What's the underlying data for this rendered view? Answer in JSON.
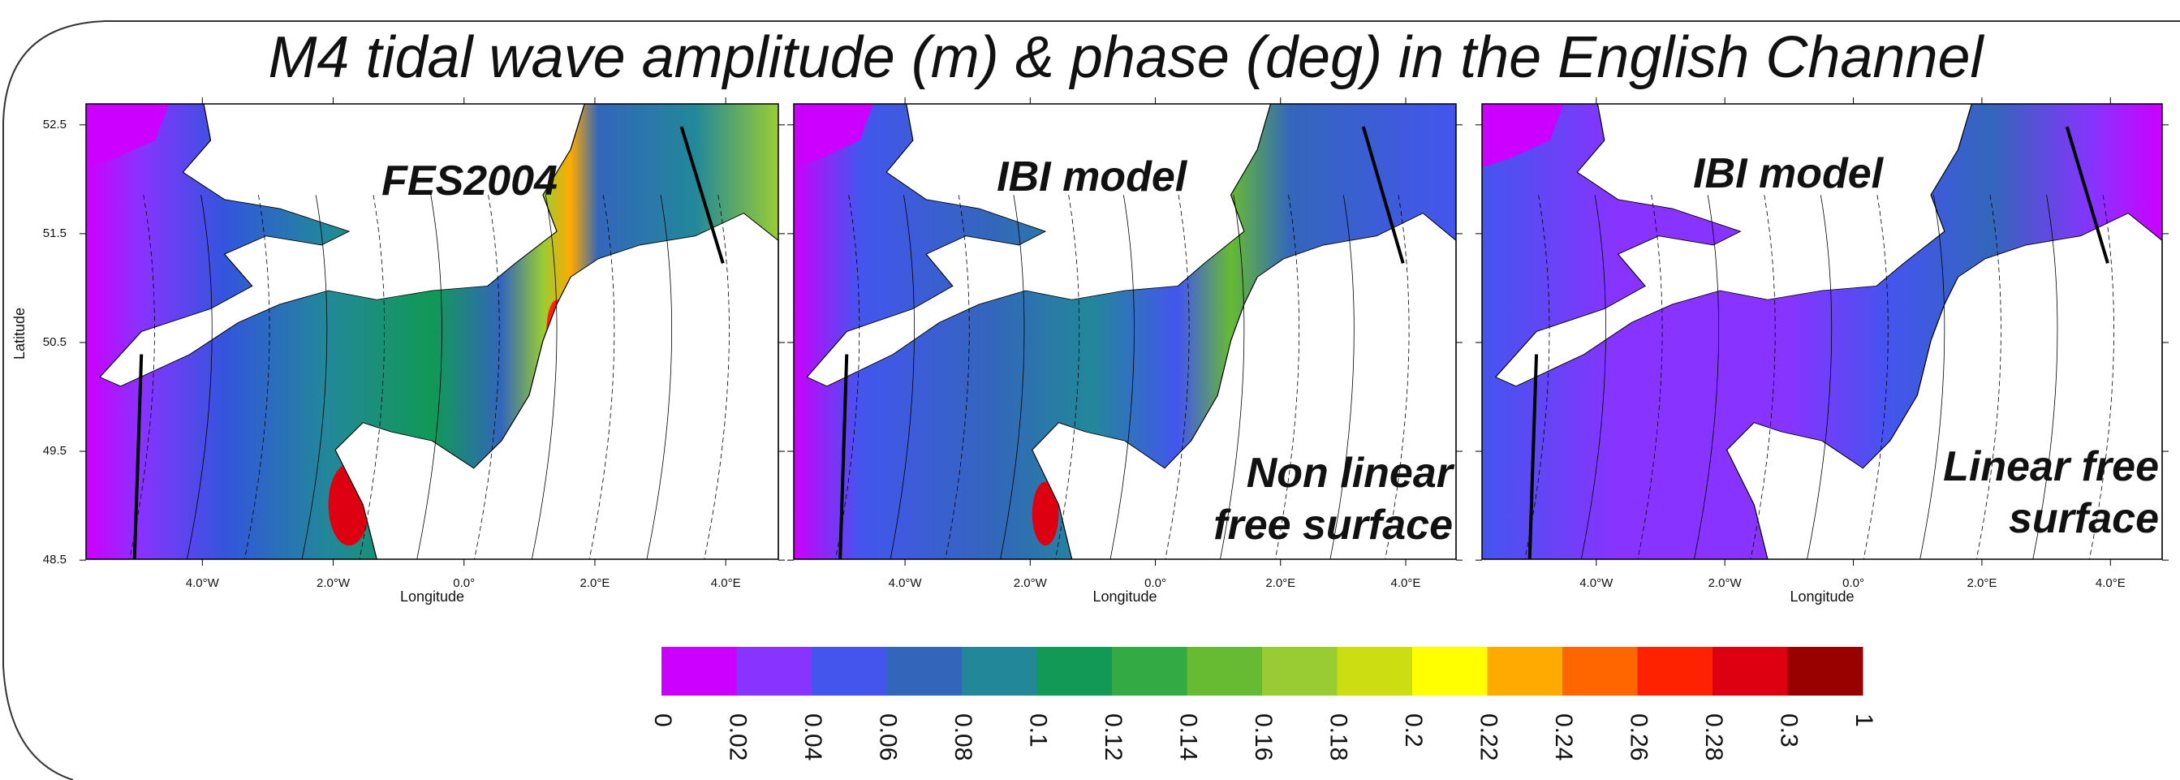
{
  "title": "M4 tidal wave amplitude (m) & phase (deg) in the English Channel",
  "axes": {
    "y_label": "Latitude",
    "x_label": "Longitude",
    "y_ticks": [
      52.5,
      51.5,
      50.5,
      49.5,
      48.5
    ],
    "x_ticks": [
      "4.0°W",
      "2.0°W",
      "0.0°",
      "2.0°E",
      "4.0°E"
    ]
  },
  "panels": [
    {
      "label": "FES2004"
    },
    {
      "label": "IBI model",
      "note": [
        "Non linear",
        "free surface"
      ]
    },
    {
      "label": "IBI model",
      "note": [
        "Linear free",
        "surface"
      ]
    }
  ],
  "colorbar": {
    "colors": [
      "#cc00ff",
      "#8833ff",
      "#4455ee",
      "#3366bb",
      "#228899",
      "#119955",
      "#33aa44",
      "#66bb33",
      "#99cc33",
      "#ccdd11",
      "#ffff00",
      "#ffaa00",
      "#ff6600",
      "#ff2200",
      "#dd0011",
      "#990000"
    ],
    "labels": [
      0,
      0.02,
      0.04,
      0.06,
      0.08,
      0.1,
      0.12,
      0.14,
      0.16,
      0.18,
      0.2,
      0.22,
      0.24,
      0.26,
      0.28,
      0.3,
      1
    ]
  }
}
